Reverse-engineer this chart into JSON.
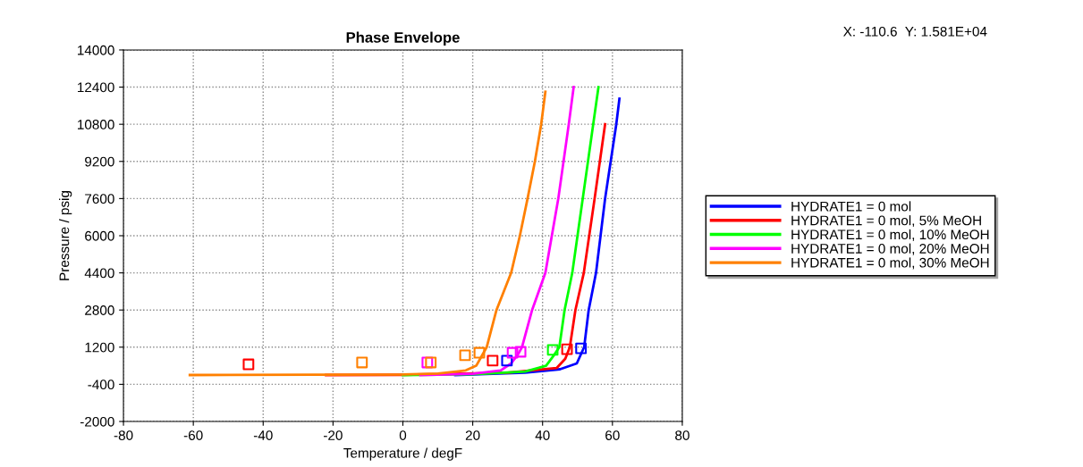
{
  "chart_data": {
    "type": "line",
    "title": "Phase Envelope",
    "xlabel": "Temperature / degF",
    "ylabel": "Pressure / psig",
    "annotations": [
      "X: -110.6  Y: 1.581E+04"
    ],
    "xlim": [
      -80,
      80
    ],
    "xticks": [
      -80,
      -60,
      -40,
      -20,
      0,
      20,
      40,
      60,
      80
    ],
    "ylim": [
      -2000,
      14000
    ],
    "yticks": [
      -2000,
      -400,
      1200,
      2800,
      4400,
      6000,
      7600,
      9200,
      10800,
      12400,
      14000
    ],
    "grid": true,
    "legend": "right",
    "line_style": "solid",
    "series": [
      {
        "name": "HYDRATE1 = 0 mol",
        "color": "#0000ff",
        "x": [
          15,
          35,
          45,
          49.8,
          51.9,
          53.2,
          55.3,
          57.9,
          61.1,
          62
        ],
        "values": [
          0,
          100,
          250,
          500,
          1200,
          2800,
          4400,
          7600,
          10800,
          11900
        ]
      },
      {
        "name": "HYDRATE1 = 0 mol, 5% MeOH",
        "color": "#ff0000",
        "x": [
          -22,
          0,
          30,
          44,
          46.5,
          47.8,
          49.4,
          51.8,
          54.9,
          57.9
        ],
        "values": [
          0,
          10,
          100,
          300,
          700,
          1200,
          2800,
          4400,
          7600,
          10800
        ]
      },
      {
        "name": "HYDRATE1 = 0 mol, 10% MeOH",
        "color": "#00ff00",
        "x": [
          0,
          20,
          35,
          41,
          43,
          44.8,
          46.3,
          48.5,
          51.5,
          54.5,
          56
        ],
        "values": [
          0,
          30,
          150,
          400,
          800,
          1200,
          2800,
          4400,
          7600,
          10800,
          12400
        ]
      },
      {
        "name": "HYDRATE1 = 0 mol, 20% MeOH",
        "color": "#ff00ff",
        "x": [
          5,
          20,
          28,
          31,
          33,
          34.1,
          37,
          40.8,
          44.5,
          47.5,
          48.9
        ],
        "values": [
          0,
          50,
          200,
          500,
          900,
          1200,
          2800,
          4400,
          7600,
          10800,
          12400
        ]
      },
      {
        "name": "HYDRATE1 = 0 mol, 30% MeOH",
        "color": "#ff8000",
        "x": [
          -61,
          0,
          10,
          18,
          21,
          22.5,
          24,
          26.8,
          31,
          33.5,
          35.7,
          37.8,
          39.6,
          40.8
        ],
        "values": [
          0,
          20,
          60,
          200,
          400,
          800,
          1200,
          2800,
          4400,
          6000,
          7600,
          9200,
          10800,
          12200
        ]
      },
      {
        "type": "scatter",
        "marker": "square",
        "color": "#0000ff",
        "x": [
          29.8,
          51
        ],
        "values": [
          620,
          1150
        ]
      },
      {
        "type": "scatter",
        "marker": "square",
        "color": "#ff0000",
        "x": [
          -44.2,
          25.7,
          47
        ],
        "values": [
          460,
          620,
          1110
        ]
      },
      {
        "type": "scatter",
        "marker": "square",
        "color": "#00ff00",
        "x": [
          42.9
        ],
        "values": [
          1080
        ]
      },
      {
        "type": "scatter",
        "marker": "square",
        "color": "#ff00ff",
        "x": [
          7,
          31.4,
          33.7
        ],
        "values": [
          540,
          960,
          1000
        ]
      },
      {
        "type": "scatter",
        "marker": "square",
        "color": "#ff8000",
        "x": [
          -11.7,
          8,
          17.8,
          21.9
        ],
        "values": [
          540,
          540,
          850,
          960
        ]
      }
    ]
  }
}
